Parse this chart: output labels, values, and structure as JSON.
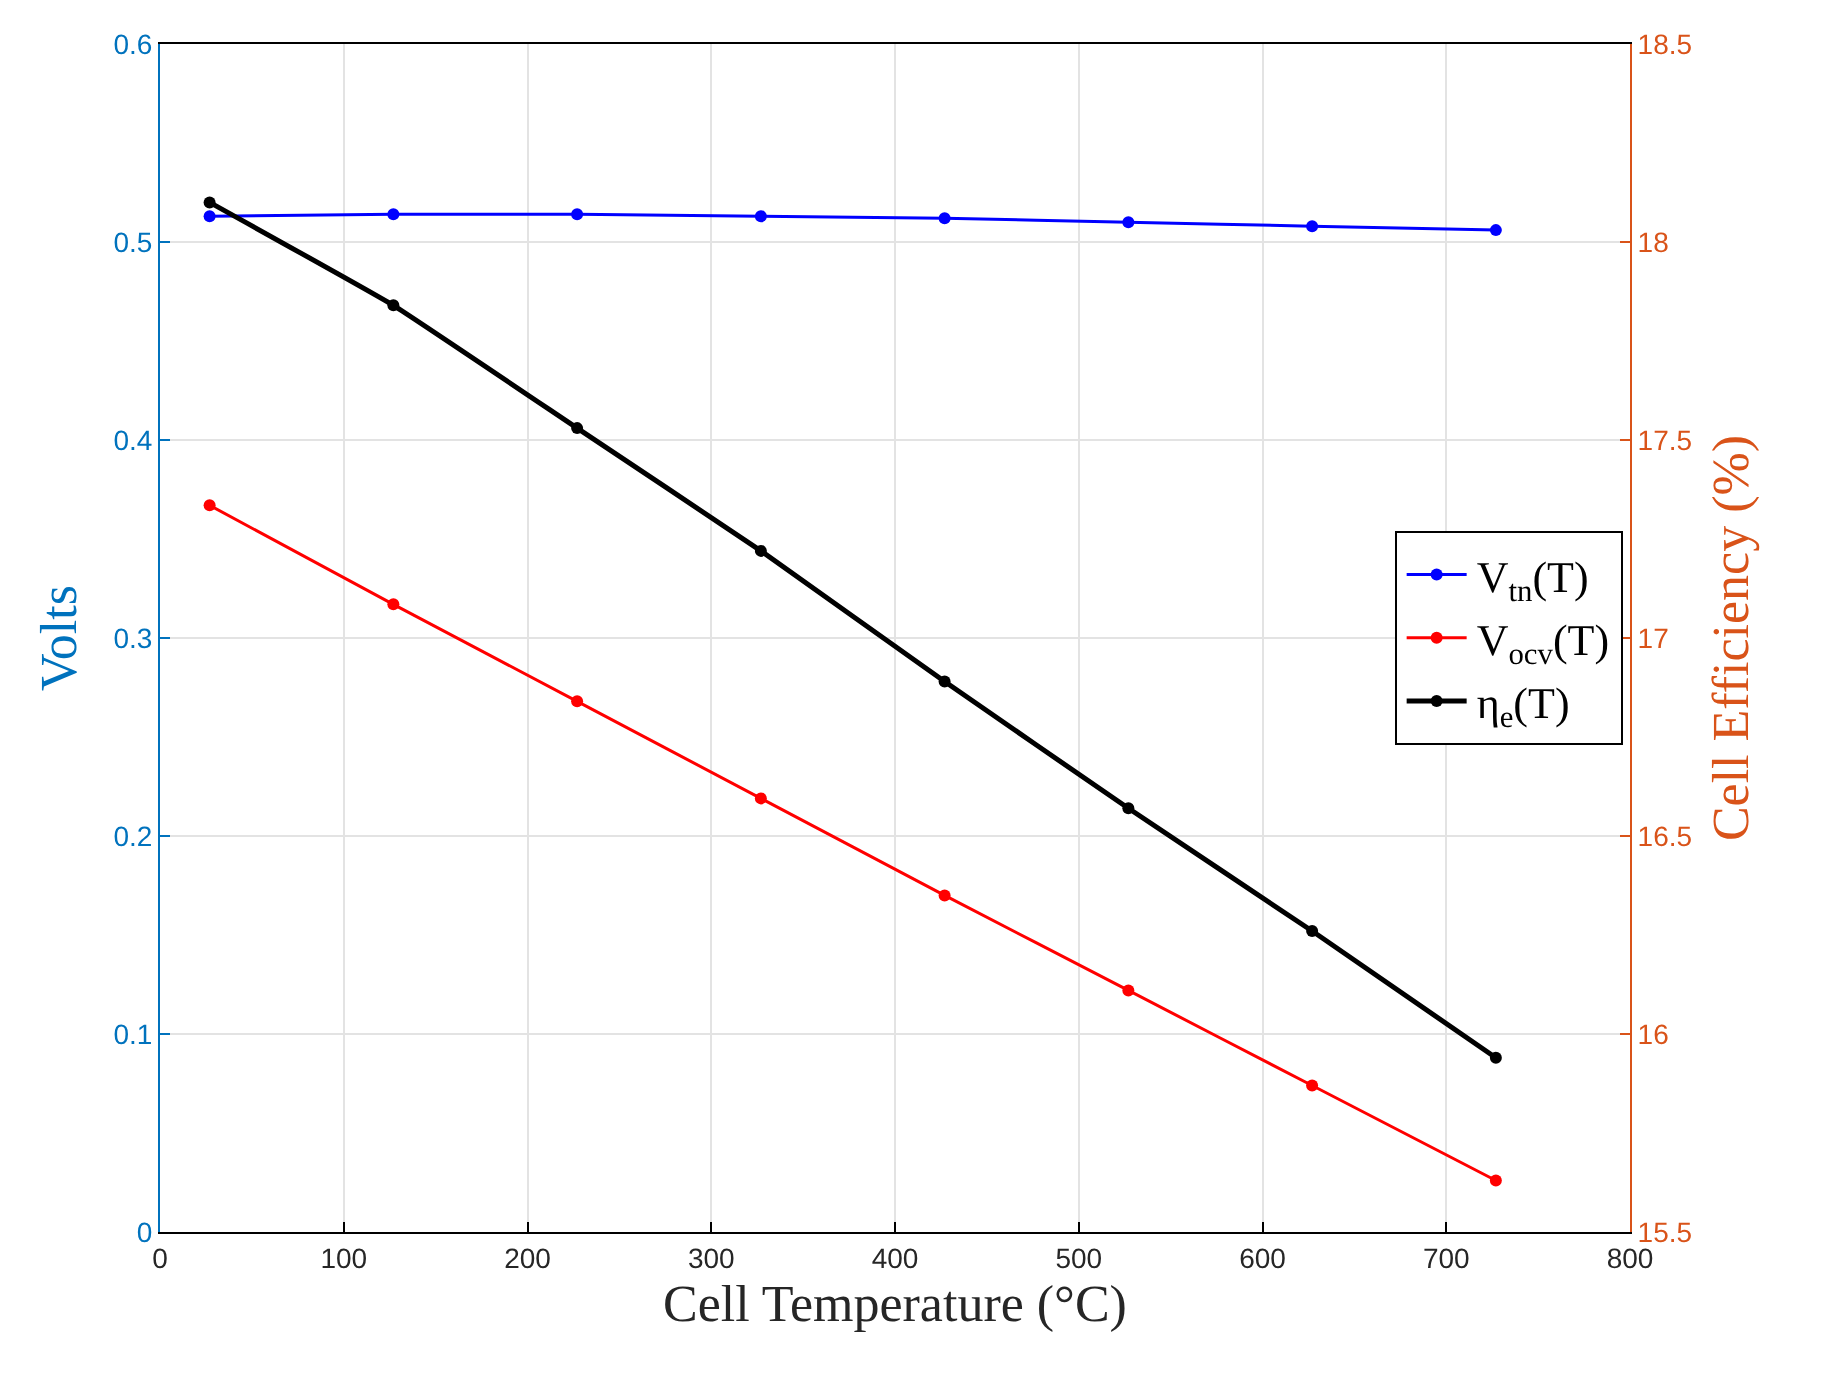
{
  "chart_data": {
    "type": "line",
    "xlabel": "Cell Temperature (°C)",
    "ylabel": "Volts",
    "y2label": "Cell Efficiency (%)",
    "x": [
      27,
      127,
      227,
      327,
      427,
      527,
      627,
      727
    ],
    "series": [
      {
        "name": "V$_{tn}$(T)",
        "color": "#0000ff",
        "values": [
          0.513,
          0.514,
          0.514,
          0.513,
          0.512,
          0.51,
          0.508,
          0.506
        ]
      },
      {
        "name": "V$_{ocv}$(T)",
        "color": "#ff0000",
        "values": [
          0.367,
          0.317,
          0.268,
          0.219,
          0.17,
          0.122,
          0.074,
          0.026
        ]
      },
      {
        "name": "η$_{e}$(T)",
        "color": "#000000",
        "axis": "y2",
        "values": [
          18.1,
          17.84,
          17.53,
          17.22,
          16.89,
          16.57,
          16.26,
          15.94
        ]
      }
    ],
    "xlim": [
      0,
      800
    ],
    "xticks": [
      0,
      100,
      200,
      300,
      400,
      500,
      600,
      700,
      800
    ],
    "ylim": [
      0,
      0.6
    ],
    "yticks": [
      0,
      0.1,
      0.2,
      0.3,
      0.4,
      0.5,
      0.6
    ],
    "y2lim": [
      15.5,
      18.5
    ],
    "y2ticks": [
      15.5,
      16,
      16.5,
      17,
      17.5,
      18,
      18.5
    ],
    "grid": true,
    "legend": "right",
    "marker": "circle",
    "line_style": "solid"
  }
}
